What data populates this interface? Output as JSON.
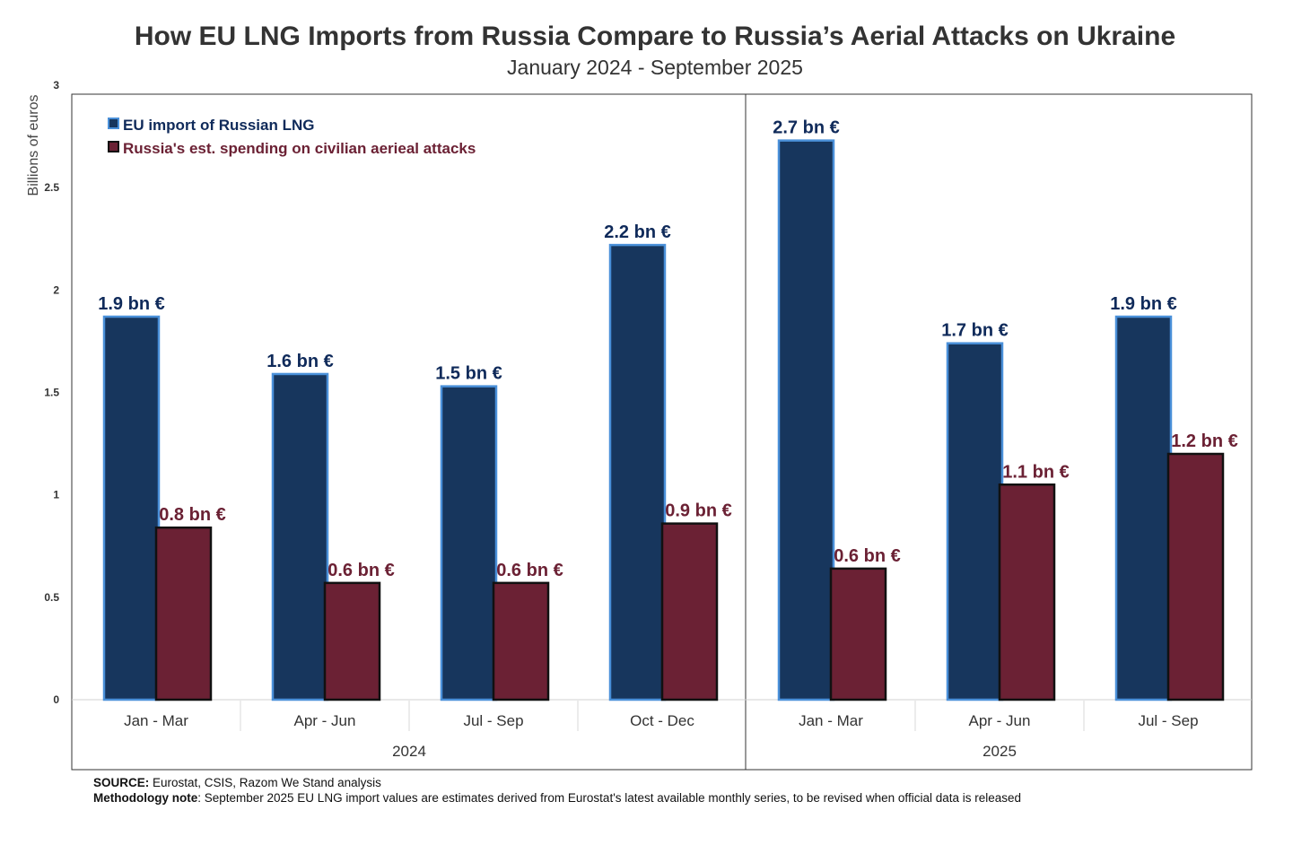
{
  "chart_data": {
    "type": "bar",
    "title": "How EU LNG Imports from Russia Compare to Russia’s Aerial Attacks on Ukraine",
    "subtitle": "January 2024 - September 2025",
    "ylabel": "Billions of euros",
    "ylim": [
      0,
      3
    ],
    "yticks": [
      "0",
      "0.5",
      "1",
      "1.5",
      "2",
      "2.5",
      "3"
    ],
    "groups": [
      {
        "year": "2024",
        "categories": [
          "Jan - Mar",
          "Apr - Jun",
          "Jul - Sep",
          "Oct - Dec"
        ]
      },
      {
        "year": "2025",
        "categories": [
          "Jan - Mar",
          "Apr - Jun",
          "Jul - Sep"
        ]
      }
    ],
    "series": [
      {
        "name": "EU import of Russian LNG",
        "color": "#17365d",
        "edge": "#4a90d9",
        "values": [
          1.87,
          1.59,
          1.53,
          2.22,
          2.73,
          1.74,
          1.87
        ],
        "labels": [
          "1.9 bn €",
          "1.6 bn €",
          "1.5 bn €",
          "2.2 bn €",
          "2.7 bn €",
          "1.7 bn €",
          "1.9 bn €"
        ],
        "label_color": "#0f2a5a"
      },
      {
        "name": "Russia's est. spending on civilian aerieal attacks",
        "color": "#6b2134",
        "edge": "#111111",
        "values": [
          0.84,
          0.57,
          0.57,
          0.86,
          0.64,
          1.05,
          1.2
        ],
        "labels": [
          "0.8 bn €",
          "0.6 bn €",
          "0.6 bn €",
          "0.9 bn €",
          "0.6 bn €",
          "1.1 bn €",
          "1.2 bn €"
        ],
        "label_color": "#6b2134"
      }
    ],
    "legend": "top-left"
  },
  "notes": {
    "source_label": "SOURCE:",
    "source_text": " Eurostat, CSIS, Razom We Stand analysis",
    "method_label": "Methodology note",
    "method_text": ": September 2025 EU LNG  import values are estimates derived from Eurostat's latest available monthly series,  to be revised when official data is released"
  }
}
